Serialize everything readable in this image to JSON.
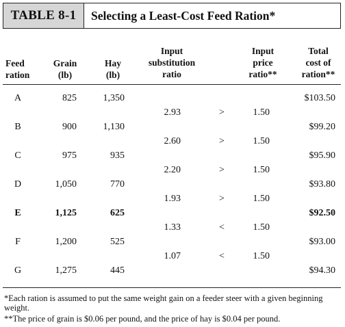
{
  "title": {
    "table_label": "Table 8-1",
    "table_label_display": "TABLE 8-1",
    "caption": "Selecting a Least-Cost Feed Ration*"
  },
  "headers": {
    "feed_ration": [
      "Feed",
      "ration"
    ],
    "grain": [
      "Grain",
      "(lb)"
    ],
    "hay": [
      "Hay",
      "(lb)"
    ],
    "input_substitution_ratio": [
      "Input",
      "substitution",
      "ratio"
    ],
    "input_price_ratio": [
      "Input",
      "price",
      "ratio**"
    ],
    "total_cost": [
      "Total",
      "cost of",
      "ration**"
    ]
  },
  "rations": [
    {
      "name": "A",
      "grain": "825",
      "hay": "1,350",
      "total_cost": "$103.50",
      "bold": false
    },
    {
      "name": "B",
      "grain": "900",
      "hay": "1,130",
      "total_cost": "$99.20",
      "bold": false
    },
    {
      "name": "C",
      "grain": "975",
      "hay": "935",
      "total_cost": "$95.90",
      "bold": false
    },
    {
      "name": "D",
      "grain": "1,050",
      "hay": "770",
      "total_cost": "$93.80",
      "bold": false
    },
    {
      "name": "E",
      "grain": "1,125",
      "hay": "625",
      "total_cost": "$92.50",
      "bold": true
    },
    {
      "name": "F",
      "grain": "1,200",
      "hay": "525",
      "total_cost": "$93.00",
      "bold": false
    },
    {
      "name": "G",
      "grain": "1,275",
      "hay": "445",
      "total_cost": "$94.30",
      "bold": false
    }
  ],
  "ratios": [
    {
      "substitution": "2.93",
      "comparison": ">",
      "price": "1.50"
    },
    {
      "substitution": "2.60",
      "comparison": ">",
      "price": "1.50"
    },
    {
      "substitution": "2.20",
      "comparison": ">",
      "price": "1.50"
    },
    {
      "substitution": "1.93",
      "comparison": ">",
      "price": "1.50"
    },
    {
      "substitution": "1.33",
      "comparison": "<",
      "price": "1.50"
    },
    {
      "substitution": "1.07",
      "comparison": "<",
      "price": "1.50"
    }
  ],
  "footnotes": [
    "*Each ration is assumed to put the same weight gain on a feeder steer with a given beginning weight.",
    "**The price of grain is $0.06 per pound, and the price of hay is $0.04 per pound."
  ]
}
